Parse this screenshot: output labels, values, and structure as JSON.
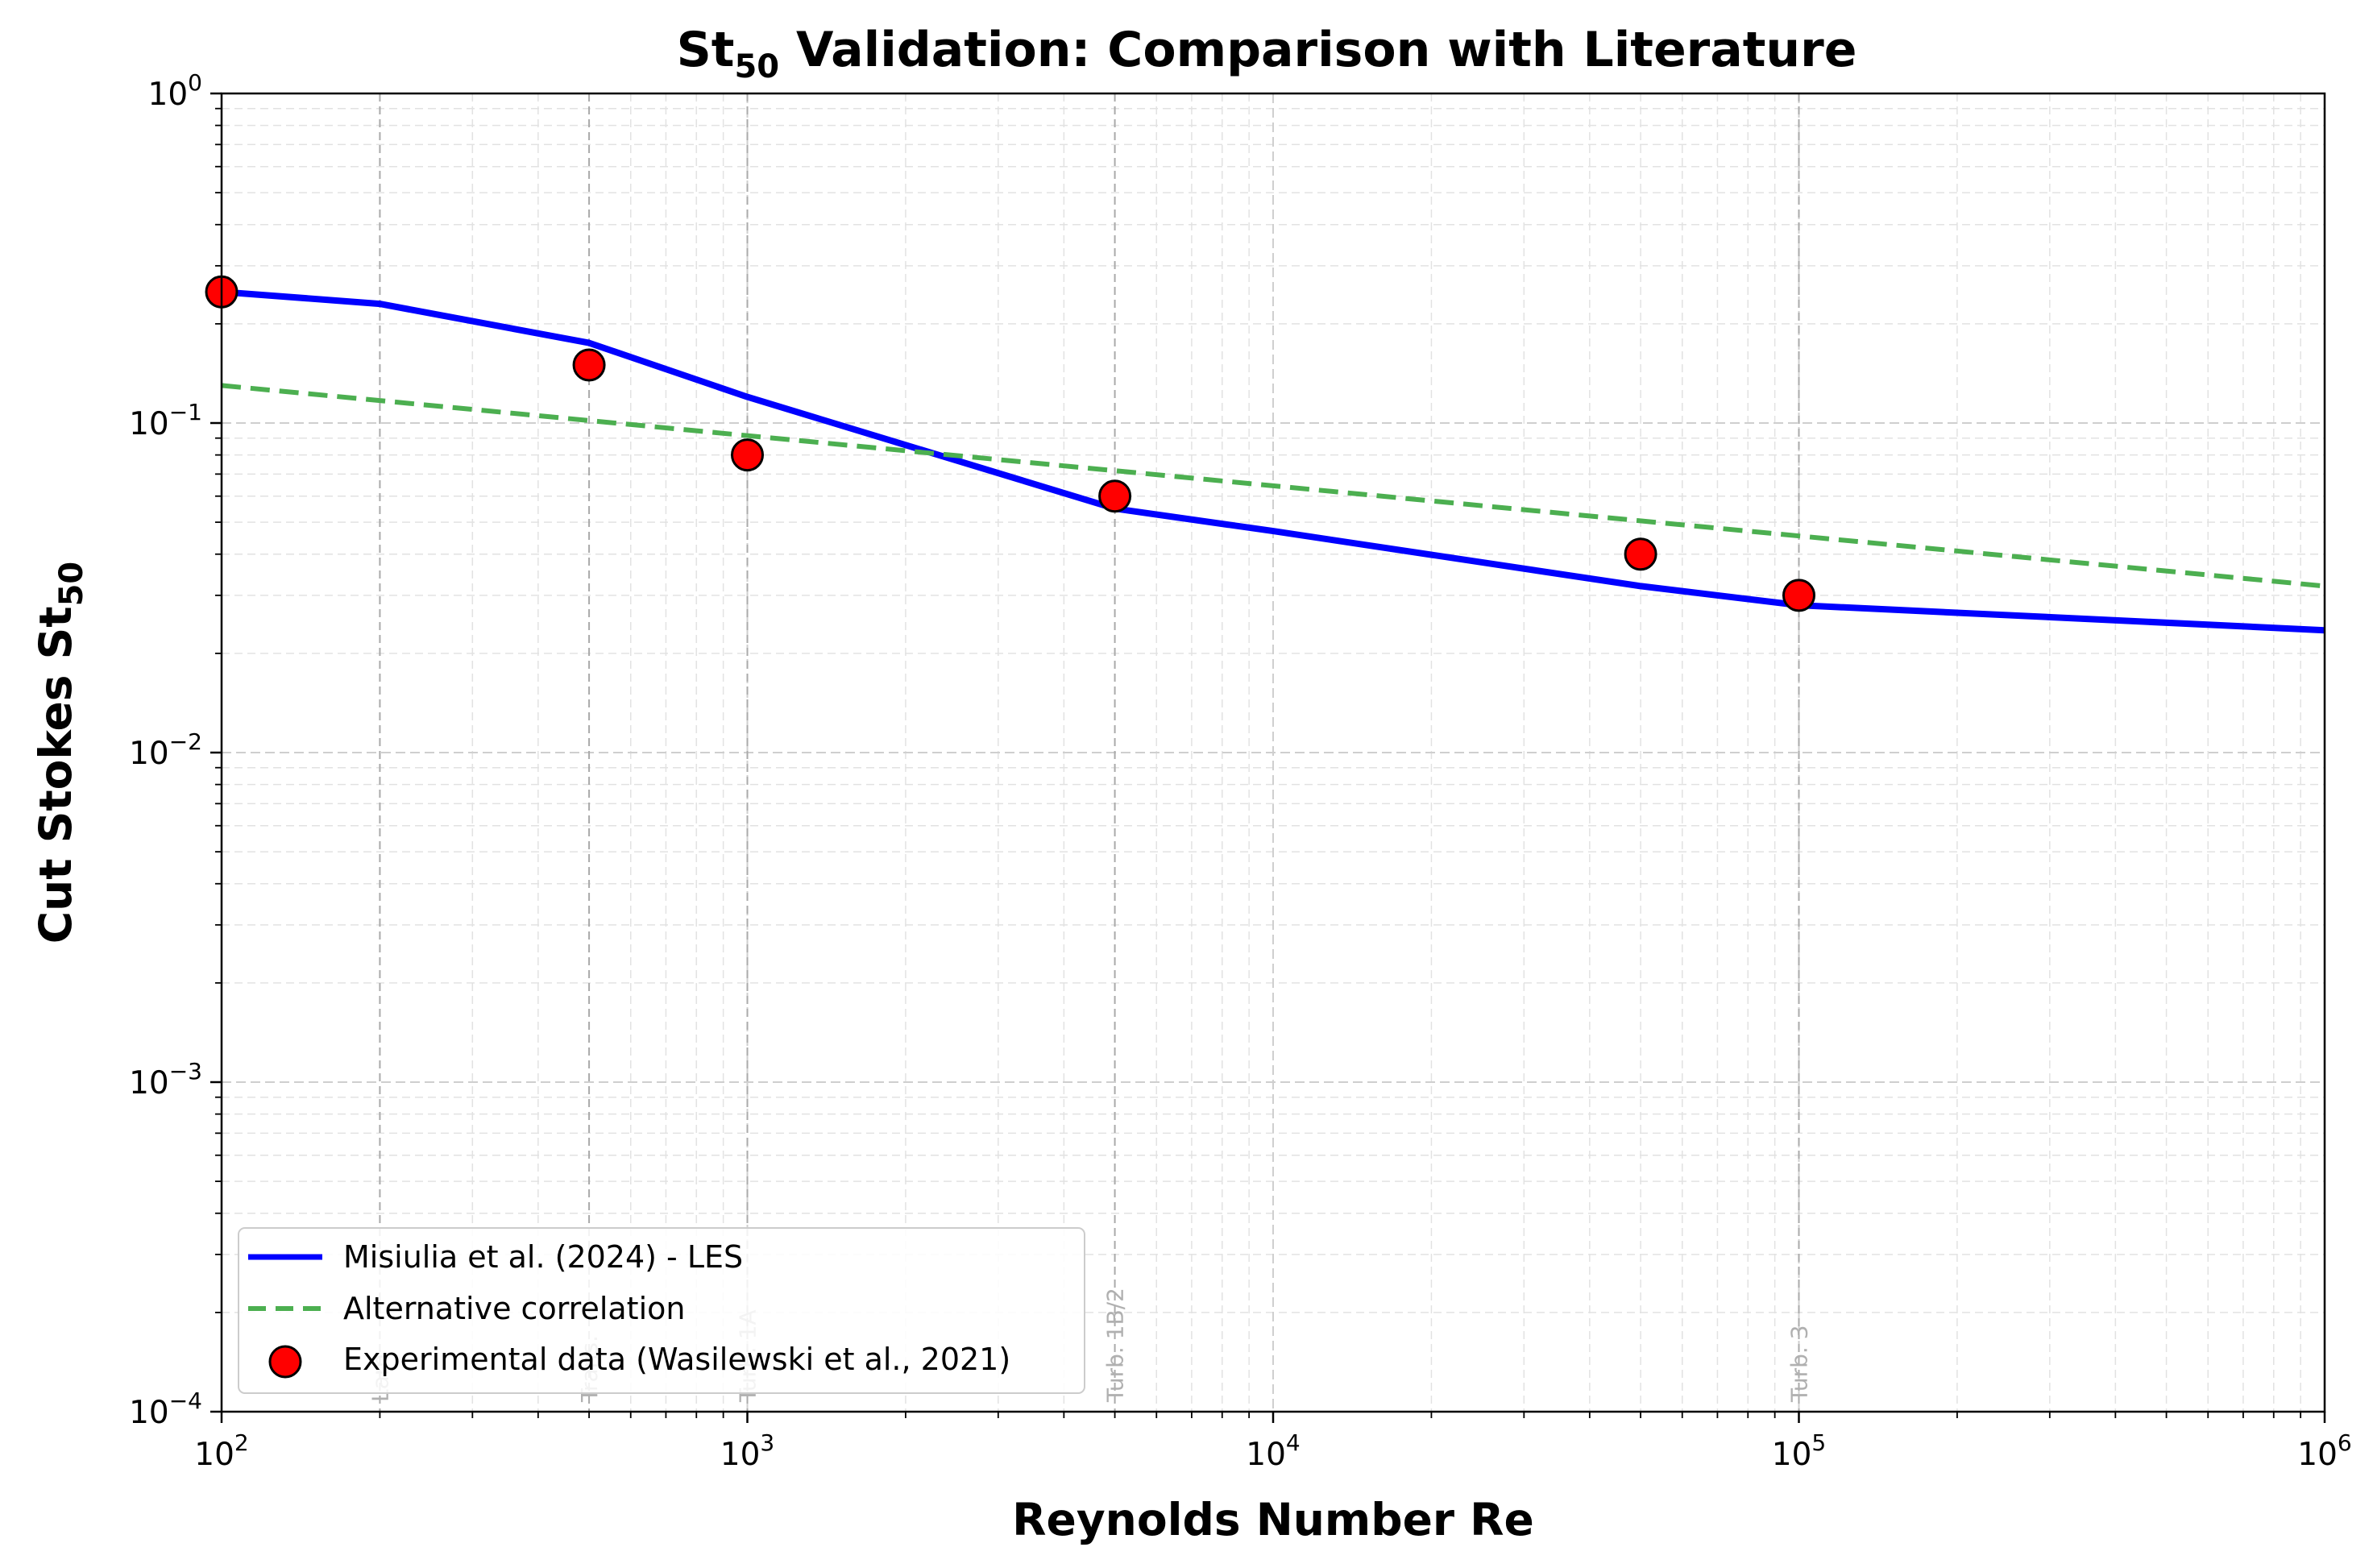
{
  "chart_data": {
    "type": "line",
    "title_main": "St",
    "title_sub": "50",
    "title_rest": " Validation: Comparison with Literature",
    "xlabel": "Reynolds Number Re",
    "ylabel_main": "Cut Stokes St",
    "ylabel_sub": "50",
    "x_scale": "log",
    "y_scale": "log",
    "xlim": [
      100,
      1000000
    ],
    "ylim": [
      0.0001,
      1
    ],
    "grid": true,
    "legend_position": "lower-left",
    "x_ticks": [
      {
        "value": 100,
        "base": "10",
        "exp": "2"
      },
      {
        "value": 1000,
        "base": "10",
        "exp": "3"
      },
      {
        "value": 10000,
        "base": "10",
        "exp": "4"
      },
      {
        "value": 100000,
        "base": "10",
        "exp": "5"
      },
      {
        "value": 1000000,
        "base": "10",
        "exp": "6"
      }
    ],
    "y_ticks": [
      {
        "value": 1,
        "base": "10",
        "exp": "0"
      },
      {
        "value": 0.1,
        "base": "10",
        "exp": "−1"
      },
      {
        "value": 0.01,
        "base": "10",
        "exp": "−2"
      },
      {
        "value": 0.001,
        "base": "10",
        "exp": "−3"
      },
      {
        "value": 0.0001,
        "base": "10",
        "exp": "−4"
      }
    ],
    "regime_lines": [
      {
        "x": 200,
        "label": "Lam"
      },
      {
        "x": 500,
        "label": "Trans."
      },
      {
        "x": 1000,
        "label": "Turb. 1A"
      },
      {
        "x": 5000,
        "label": "Turb. 1B/2"
      },
      {
        "x": 100000,
        "label": "Turb. 3"
      }
    ],
    "series": [
      {
        "name": "Misiulia et al. (2024) - LES",
        "kind": "line",
        "color": "#0000ff",
        "style": "solid",
        "x": [
          100,
          200,
          500,
          1000,
          5000,
          10000,
          50000,
          100000,
          1000000
        ],
        "y": [
          0.25,
          0.23,
          0.175,
          0.12,
          0.055,
          0.047,
          0.032,
          0.028,
          0.0235
        ]
      },
      {
        "name": "Alternative correlation",
        "kind": "line",
        "color": "#4caf50",
        "style": "dashed",
        "x": [
          100,
          1000000
        ],
        "y": [
          0.13,
          0.032
        ]
      },
      {
        "name": "Experimental data (Wasilewski et al., 2021)",
        "kind": "scatter",
        "color": "#ff0000",
        "x": [
          100,
          500,
          1000,
          5000,
          50000,
          100000
        ],
        "y": [
          0.25,
          0.15,
          0.08,
          0.06,
          0.04,
          0.03
        ]
      }
    ]
  }
}
